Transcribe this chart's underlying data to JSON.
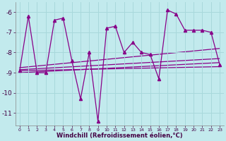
{
  "xlabel": "Windchill (Refroidissement éolien,°C)",
  "background_color": "#c2eaed",
  "grid_color": "#a8d8db",
  "line_color": "#880088",
  "xlim": [
    -0.5,
    23.5
  ],
  "ylim": [
    -11.6,
    -5.5
  ],
  "yticks": [
    -11,
    -10,
    -9,
    -8,
    -7,
    -6
  ],
  "xticks": [
    0,
    1,
    2,
    3,
    4,
    5,
    6,
    7,
    8,
    9,
    10,
    11,
    12,
    13,
    14,
    15,
    16,
    17,
    18,
    19,
    20,
    21,
    22,
    23
  ],
  "main_x": [
    0,
    1,
    2,
    3,
    4,
    5,
    6,
    7,
    8,
    9,
    10,
    11,
    12,
    13,
    14,
    15,
    16,
    17,
    18,
    19,
    20,
    21,
    22,
    23
  ],
  "main_y": [
    -8.9,
    -6.2,
    -9.0,
    -9.0,
    -6.4,
    -6.3,
    -8.4,
    -10.3,
    -8.0,
    -11.4,
    -6.8,
    -6.7,
    -8.0,
    -7.5,
    -8.0,
    -8.1,
    -9.3,
    -5.9,
    -6.1,
    -6.9,
    -6.9,
    -6.9,
    -7.0,
    -8.6
  ],
  "trend1_x": [
    0,
    23
  ],
  "trend1_y": [
    -9.0,
    -8.5
  ],
  "trend2_x": [
    0,
    23
  ],
  "trend2_y": [
    -8.9,
    -8.7
  ],
  "trend3_x": [
    0,
    23
  ],
  "trend3_y": [
    -8.85,
    -8.3
  ],
  "trend4_x": [
    0,
    23
  ],
  "trend4_y": [
    -8.75,
    -7.8
  ]
}
